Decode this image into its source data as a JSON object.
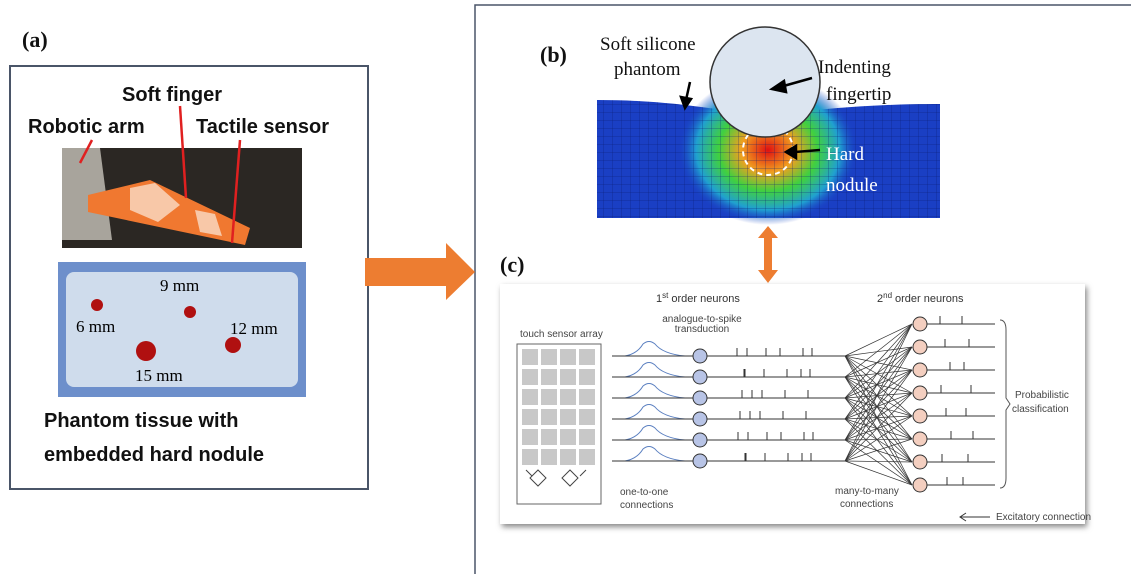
{
  "panel_a": {
    "label": "(a)",
    "soft_finger": "Soft finger",
    "robotic_arm": "Robotic arm",
    "tactile_sensor": "Tactile sensor",
    "nodule_sizes": [
      "9 mm",
      "6 mm",
      "12 mm",
      "15 mm"
    ],
    "caption": [
      "Phantom tissue with",
      "embedded hard nodule"
    ]
  },
  "panel_b": {
    "label": "(b)",
    "phantom": [
      "Soft silicone",
      "phantom"
    ],
    "fingertip": [
      "Indenting",
      "fingertip"
    ],
    "nodule": [
      "Hard",
      "nodule"
    ]
  },
  "panel_c": {
    "label": "(c)",
    "first_order": {
      "number": "1",
      "suffix": "st",
      "text": "order neurons"
    },
    "second_order": {
      "number": "2",
      "suffix": "nd",
      "text": "order neurons"
    },
    "sensor_array": "touch sensor array",
    "transduction": [
      "analogue-to-spike",
      "transduction"
    ],
    "one_to_one": [
      "one-to-one",
      "connections"
    ],
    "many_to_many": [
      "many-to-many",
      "connections"
    ],
    "classification": [
      "Probabilistic",
      "classification"
    ],
    "legend": "Excitatory connection"
  }
}
